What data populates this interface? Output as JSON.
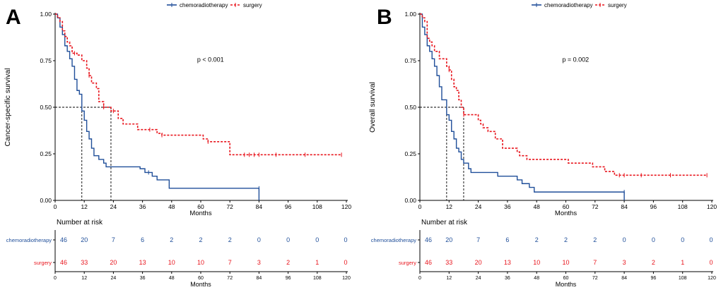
{
  "legend": {
    "items": [
      {
        "name": "chemoradiotherapy",
        "color": "#1f4e99",
        "dash": "solid"
      },
      {
        "name": "surgery",
        "color": "#e8141c",
        "dash": "dashed"
      }
    ]
  },
  "chart_data": [
    {
      "panel_label": "A",
      "type": "line",
      "title": "",
      "ylabel": "Cancer-specific survival",
      "xlabel": "Months",
      "xlim": [
        0,
        120
      ],
      "ylim": [
        0,
        1
      ],
      "xticks": [
        0,
        12,
        24,
        36,
        48,
        60,
        72,
        84,
        96,
        108,
        120
      ],
      "yticks": [
        0.0,
        0.25,
        0.5,
        0.75,
        1.0
      ],
      "ytick_labels": [
        "0.00",
        "0.25",
        "0.50",
        "0.75",
        "1.00"
      ],
      "pvalue": "p < 0.001",
      "median_lines": [
        {
          "series": "chemoradiotherapy",
          "x": 11
        },
        {
          "series": "surgery",
          "x": 23
        }
      ],
      "series": [
        {
          "name": "chemoradiotherapy",
          "step_points": [
            [
              0,
              1.0
            ],
            [
              1,
              0.98
            ],
            [
              2,
              0.93
            ],
            [
              3,
              0.89
            ],
            [
              4,
              0.83
            ],
            [
              5,
              0.8
            ],
            [
              6,
              0.76
            ],
            [
              7,
              0.72
            ],
            [
              8,
              0.65
            ],
            [
              9,
              0.59
            ],
            [
              10,
              0.57
            ],
            [
              11,
              0.48
            ],
            [
              12,
              0.43
            ],
            [
              13,
              0.37
            ],
            [
              14,
              0.33
            ],
            [
              15,
              0.28
            ],
            [
              16,
              0.24
            ],
            [
              18,
              0.22
            ],
            [
              20,
              0.2
            ],
            [
              21,
              0.18
            ],
            [
              35,
              0.17
            ],
            [
              37,
              0.15
            ],
            [
              40,
              0.13
            ],
            [
              42,
              0.11
            ],
            [
              47,
              0.065
            ],
            [
              84,
              0.065
            ],
            [
              84,
              0
            ]
          ],
          "censor_x": [
            38.5,
            84
          ]
        },
        {
          "name": "surgery",
          "step_points": [
            [
              0,
              1.0
            ],
            [
              1,
              0.98
            ],
            [
              2,
              0.96
            ],
            [
              3,
              0.91
            ],
            [
              4,
              0.88
            ],
            [
              5,
              0.85
            ],
            [
              6,
              0.83
            ],
            [
              7,
              0.79
            ],
            [
              9,
              0.78
            ],
            [
              11,
              0.75
            ],
            [
              13,
              0.71
            ],
            [
              14,
              0.67
            ],
            [
              15,
              0.63
            ],
            [
              17,
              0.6
            ],
            [
              18,
              0.53
            ],
            [
              20,
              0.5
            ],
            [
              23,
              0.48
            ],
            [
              26,
              0.44
            ],
            [
              28,
              0.41
            ],
            [
              34,
              0.38
            ],
            [
              42,
              0.36
            ],
            [
              44,
              0.35
            ],
            [
              61,
              0.33
            ],
            [
              63,
              0.315
            ],
            [
              72,
              0.245
            ],
            [
              118,
              0.245
            ]
          ],
          "censor_x": [
            8,
            14,
            20,
            24,
            39,
            44,
            63,
            78,
            80,
            82,
            84,
            91,
            103,
            118
          ]
        }
      ],
      "risk_table": {
        "title": "Number at risk",
        "xlabel": "Months",
        "times": [
          0,
          12,
          24,
          36,
          48,
          60,
          72,
          84,
          96,
          108,
          120
        ],
        "rows": [
          {
            "name": "chemoradiotherapy",
            "counts": [
              "46",
              "20",
              "7",
              "6",
              "2",
              "2",
              "2",
              "0",
              "0",
              "0",
              "0"
            ]
          },
          {
            "name": "surgery",
            "counts": [
              "46",
              "33",
              "20",
              "13",
              "10",
              "10",
              "7",
              "3",
              "2",
              "1",
              "0"
            ]
          }
        ]
      }
    },
    {
      "panel_label": "B",
      "type": "line",
      "title": "",
      "ylabel": "Overall survival",
      "xlabel": "Months",
      "xlim": [
        0,
        120
      ],
      "ylim": [
        0,
        1
      ],
      "xticks": [
        0,
        12,
        24,
        36,
        48,
        60,
        72,
        84,
        96,
        108,
        120
      ],
      "yticks": [
        0.0,
        0.25,
        0.5,
        0.75,
        1.0
      ],
      "ytick_labels": [
        "0.00",
        "0.25",
        "0.50",
        "0.75",
        "1.00"
      ],
      "pvalue": "p = 0.002",
      "median_lines": [
        {
          "series": "chemoradiotherapy",
          "x": 11
        },
        {
          "series": "surgery",
          "x": 18
        }
      ],
      "series": [
        {
          "name": "chemoradiotherapy",
          "step_points": [
            [
              0,
              1.0
            ],
            [
              1,
              0.93
            ],
            [
              2,
              0.89
            ],
            [
              3,
              0.83
            ],
            [
              4,
              0.8
            ],
            [
              5,
              0.76
            ],
            [
              6,
              0.72
            ],
            [
              7,
              0.67
            ],
            [
              8,
              0.61
            ],
            [
              9,
              0.54
            ],
            [
              11,
              0.46
            ],
            [
              12,
              0.43
            ],
            [
              13,
              0.37
            ],
            [
              14,
              0.33
            ],
            [
              15,
              0.28
            ],
            [
              16,
              0.26
            ],
            [
              17,
              0.22
            ],
            [
              18,
              0.2
            ],
            [
              20,
              0.17
            ],
            [
              21,
              0.15
            ],
            [
              32,
              0.13
            ],
            [
              40,
              0.11
            ],
            [
              42,
              0.09
            ],
            [
              45,
              0.07
            ],
            [
              47,
              0.045
            ],
            [
              84,
              0.045
            ],
            [
              84,
              0
            ]
          ],
          "censor_x": [
            84
          ]
        },
        {
          "name": "surgery",
          "step_points": [
            [
              0,
              1.0
            ],
            [
              1,
              0.98
            ],
            [
              2,
              0.96
            ],
            [
              3,
              0.87
            ],
            [
              4,
              0.85
            ],
            [
              5,
              0.83
            ],
            [
              6,
              0.8
            ],
            [
              8,
              0.76
            ],
            [
              11,
              0.72
            ],
            [
              12,
              0.7
            ],
            [
              13,
              0.65
            ],
            [
              14,
              0.61
            ],
            [
              15,
              0.59
            ],
            [
              16,
              0.54
            ],
            [
              17,
              0.5
            ],
            [
              18,
              0.46
            ],
            [
              24,
              0.43
            ],
            [
              25,
              0.41
            ],
            [
              26,
              0.39
            ],
            [
              28,
              0.37
            ],
            [
              31,
              0.33
            ],
            [
              34,
              0.28
            ],
            [
              40,
              0.26
            ],
            [
              41,
              0.24
            ],
            [
              44,
              0.22
            ],
            [
              61,
              0.2
            ],
            [
              71,
              0.18
            ],
            [
              76,
              0.155
            ],
            [
              80,
              0.135
            ],
            [
              118,
              0.135
            ]
          ],
          "censor_x": [
            12,
            18,
            82,
            84,
            91,
            103,
            118
          ]
        }
      ],
      "risk_table": {
        "title": "Number at risk",
        "xlabel": "Months",
        "times": [
          0,
          12,
          24,
          36,
          48,
          60,
          72,
          84,
          96,
          108,
          120
        ],
        "rows": [
          {
            "name": "chemoradiotherapy",
            "counts": [
              "46",
              "20",
              "7",
              "6",
              "2",
              "2",
              "2",
              "0",
              "0",
              "0",
              "0"
            ]
          },
          {
            "name": "surgery",
            "counts": [
              "46",
              "33",
              "20",
              "13",
              "10",
              "10",
              "7",
              "3",
              "2",
              "1",
              "0"
            ]
          }
        ]
      }
    }
  ]
}
